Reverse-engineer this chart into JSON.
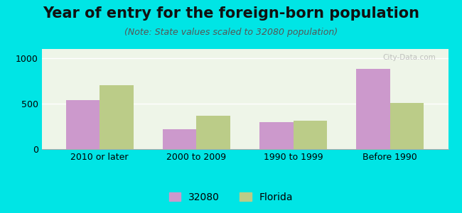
{
  "title": "Year of entry for the foreign-born population",
  "subtitle": "(Note: State values scaled to 32080 population)",
  "categories": [
    "2010 or later",
    "2000 to 2009",
    "1990 to 1999",
    "Before 1990"
  ],
  "values_32080": [
    540,
    215,
    295,
    880
  ],
  "values_florida": [
    700,
    370,
    315,
    510
  ],
  "color_32080": "#cc99cc",
  "color_florida": "#bbcc88",
  "background_outer": "#00e5e5",
  "background_inner": "#eef5e8",
  "ylim": [
    0,
    1100
  ],
  "yticks": [
    0,
    500,
    1000
  ],
  "bar_width": 0.35,
  "legend_labels": [
    "32080",
    "Florida"
  ],
  "title_fontsize": 15,
  "subtitle_fontsize": 9,
  "tick_fontsize": 9,
  "legend_fontsize": 10
}
